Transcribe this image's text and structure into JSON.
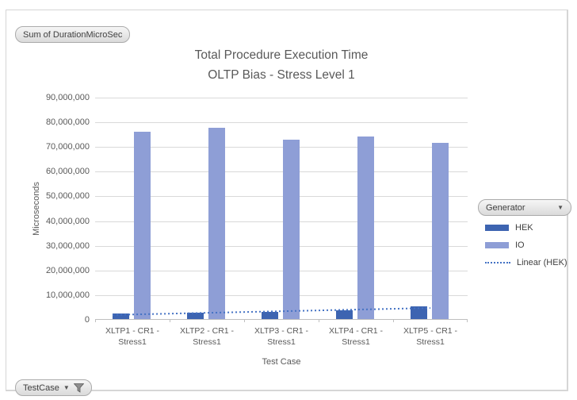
{
  "pivot": {
    "value_field_label": "Sum of DurationMicroSec",
    "legend_field_label": "Generator",
    "axis_field_label": "TestCase",
    "dropdown_icon": "▼"
  },
  "colors": {
    "grid": "#D9D9D9",
    "axis": "#BFBFBF",
    "text": "#595959",
    "series_hek": "#3D64B1",
    "series_io": "#8E9ED6",
    "trendline": "#4472C4"
  },
  "chart_data": {
    "type": "bar",
    "title_lines": [
      "Total Procedure Execution Time",
      "OLTP Bias - Stress Level 1"
    ],
    "xlabel": "Test Case",
    "ylabel": "Microseconds",
    "ylim": [
      0,
      90000000
    ],
    "ytick_step": 10000000,
    "grid": true,
    "legend_position": "right",
    "legend_title": "Generator",
    "categories": [
      "XLTP1 - CR1 - Stress1",
      "XLTP2 - CR1 - Stress1",
      "XLTP3 - CR1 - Stress1",
      "XLTP4 - CR1 - Stress1",
      "XLTP5 - CR1 - Stress1"
    ],
    "series": [
      {
        "name": "HEK",
        "color": "#3D64B1",
        "values": [
          2300000,
          2600000,
          2900000,
          3400000,
          5000000
        ]
      },
      {
        "name": "IO",
        "color": "#8E9ED6",
        "values": [
          76000000,
          77400000,
          72600000,
          73900000,
          71300000
        ]
      }
    ],
    "trendline": {
      "name": "Linear (HEK)",
      "color": "#4472C4",
      "style": "dotted",
      "start_value": 2000000,
      "end_value": 4800000
    }
  }
}
